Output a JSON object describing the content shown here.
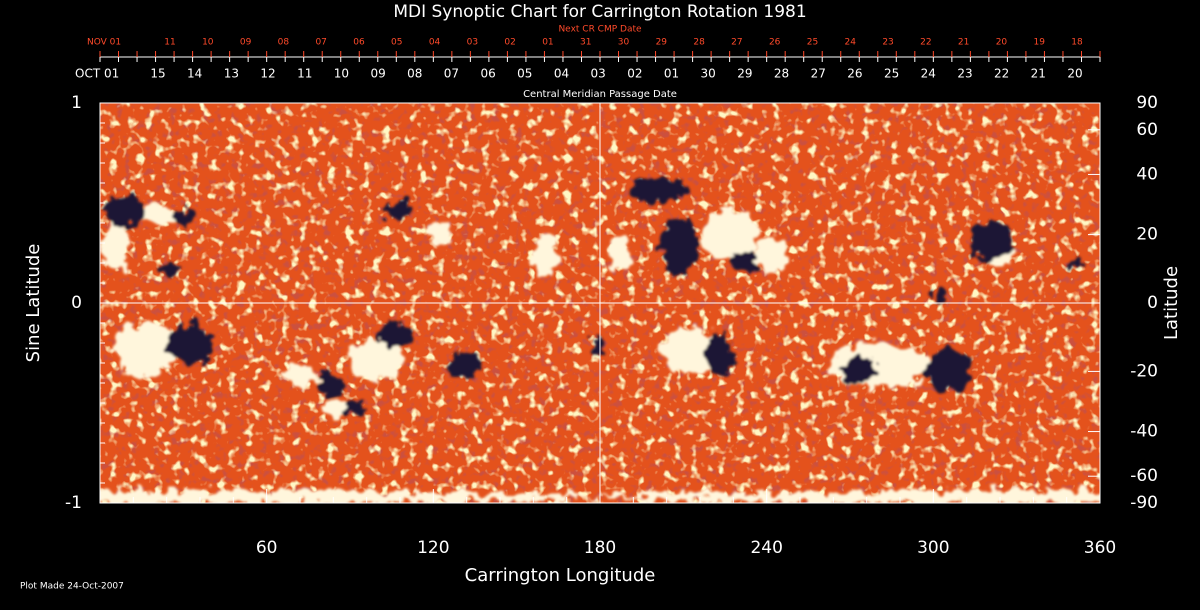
{
  "chart_data": {
    "type": "synoptic-map",
    "title": "MDI Synoptic Chart for Carrington Rotation 1981",
    "xlabel": "Carrington Longitude",
    "ylabel": "Sine Latitude",
    "y2label": "Latitude",
    "xlim": [
      0,
      360
    ],
    "xticks": [
      60,
      120,
      180,
      240,
      300,
      360
    ],
    "ylim": [
      -1,
      1
    ],
    "yticks": [
      -1,
      0,
      1
    ],
    "y2lim": [
      -90,
      90
    ],
    "y2scale": "sine",
    "y2ticks": [
      90,
      60,
      40,
      20,
      0,
      -20,
      -40,
      -60,
      -90
    ],
    "cmp_dates": {
      "label": "Central Meridian Passage Date",
      "start": "OCT 01",
      "days": [
        "15",
        "14",
        "13",
        "12",
        "11",
        "10",
        "09",
        "08",
        "07",
        "06",
        "05",
        "04",
        "03",
        "02",
        "01",
        "30",
        "29",
        "28",
        "27",
        "26",
        "25",
        "24",
        "23",
        "22",
        "21",
        "20"
      ]
    },
    "next_cmp_dates": {
      "label": "Next CR CMP Date",
      "start": "NOV 01",
      "days": [
        "11",
        "10",
        "09",
        "08",
        "07",
        "06",
        "05",
        "04",
        "03",
        "02",
        "01",
        "31",
        "30",
        "29",
        "28",
        "27",
        "26",
        "25",
        "24",
        "23",
        "22",
        "21",
        "20",
        "19",
        "18"
      ]
    },
    "footer": "Plot Made 24-Oct-2007"
  }
}
